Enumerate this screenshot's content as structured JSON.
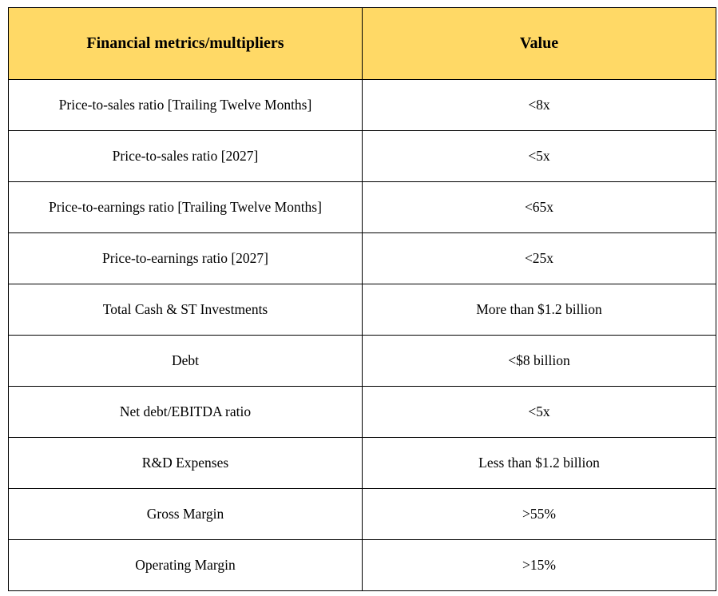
{
  "table": {
    "header": [
      "Financial metrics/multipliers",
      "Value"
    ],
    "rows": [
      [
        "Price-to-sales ratio [Trailing Twelve Months]",
        "<8x"
      ],
      [
        "Price-to-sales ratio [2027]",
        "<5x"
      ],
      [
        "Price-to-earnings ratio [Trailing Twelve Months]",
        "<65x"
      ],
      [
        "Price-to-earnings ratio [2027]",
        "<25x"
      ],
      [
        "Total Cash & ST Investments",
        "More than $1.2 billion"
      ],
      [
        "Debt",
        "<$8 billion"
      ],
      [
        "Net debt/EBITDA ratio",
        "<5x"
      ],
      [
        "R&D Expenses",
        "Less than $1.2 billion"
      ],
      [
        "Gross Margin",
        ">55%"
      ],
      [
        "Operating Margin",
        ">15%"
      ]
    ]
  }
}
